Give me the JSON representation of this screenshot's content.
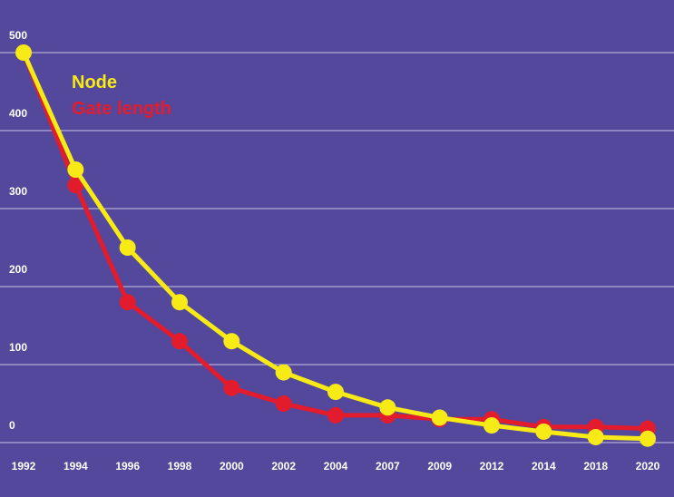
{
  "chart_data": {
    "type": "line",
    "title": "",
    "xlabel": "",
    "ylabel": "",
    "categories": [
      "1992",
      "1994",
      "1996",
      "1998",
      "2000",
      "2002",
      "2004",
      "2007",
      "2009",
      "2012",
      "2014",
      "2018",
      "2020"
    ],
    "yticks": [
      "0",
      "100",
      "200",
      "300",
      "400",
      "500"
    ],
    "ylim": [
      0,
      500
    ],
    "grid": true,
    "legend": "top-left",
    "series": [
      {
        "name": "Node",
        "color": "#f7ea17",
        "values": [
          500,
          350,
          250,
          180,
          130,
          90,
          65,
          45,
          32,
          22,
          14,
          7,
          5
        ]
      },
      {
        "name": "Gate length",
        "color": "#e31c2d",
        "values": [
          500,
          330,
          180,
          130,
          70,
          50,
          35,
          35,
          30,
          30,
          20,
          20,
          18
        ]
      }
    ]
  },
  "colors": {
    "background": "#53489b",
    "grid": "#c9c3e6",
    "tick_text": "#ffffff"
  }
}
